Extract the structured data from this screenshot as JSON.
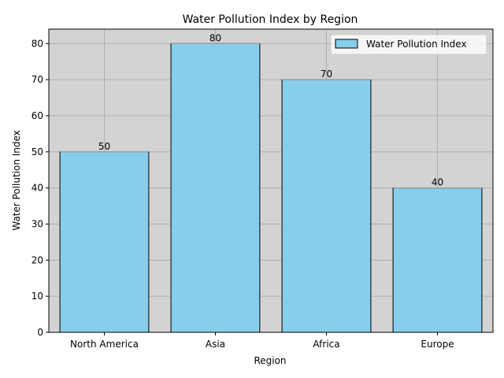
{
  "chart_data": {
    "type": "bar",
    "title": "Water Pollution Index by Region",
    "xlabel": "Region",
    "ylabel": "Water Pollution Index",
    "categories": [
      "North America",
      "Asia",
      "Africa",
      "Europe"
    ],
    "series": [
      {
        "name": "Water Pollution Index",
        "values": [
          50,
          80,
          70,
          40
        ]
      }
    ],
    "ylim": [
      0,
      84
    ],
    "yticks": [
      0,
      10,
      20,
      30,
      40,
      50,
      60,
      70,
      80
    ],
    "grid": true,
    "legend": "top-right",
    "colors": {
      "bar_fill": "#87ceeb",
      "bar_edge": "#000000",
      "plot_background": "#d3d3d3",
      "grid": "#b0b0b0"
    }
  }
}
